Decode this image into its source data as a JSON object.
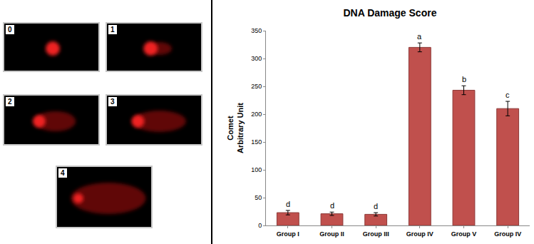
{
  "comet_images": {
    "labels": [
      "0",
      "1",
      "2",
      "3",
      "4"
    ]
  },
  "chart_data": {
    "type": "bar",
    "title": "DNA Damage Score",
    "y_label": [
      "Comet",
      "Arbitrary Unit"
    ],
    "categories": [
      "Group I",
      "Group II",
      "Group III",
      "Group IV",
      "Group V",
      "Group IV"
    ],
    "values": [
      23,
      21,
      20,
      320,
      243,
      210
    ],
    "errors": [
      4,
      3,
      3,
      8,
      8,
      13
    ],
    "annotations": [
      "d",
      "d",
      "d",
      "a",
      "b",
      "c"
    ],
    "color": "#c0504d",
    "ylim": [
      0,
      350
    ],
    "yticks": [
      0,
      50,
      100,
      150,
      200,
      250,
      300,
      350
    ],
    "grid": false
  }
}
